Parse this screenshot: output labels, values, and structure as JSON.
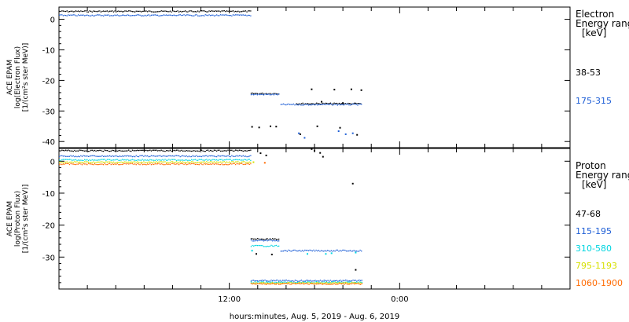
{
  "figure": {
    "xlabel": "hours:minutes, Aug.  5, 2019 - Aug.  6, 2019"
  },
  "chart_data": [
    {
      "type": "scatter",
      "panel": "electron",
      "ylabel_lines": [
        "ACE EPAM",
        "log(Electron Flux)",
        "[1/(cm²s ster MeV)]"
      ],
      "legend_title_lines": [
        "Electron",
        "Energy ranges",
        "[keV]"
      ],
      "legend_placement": "right",
      "xlim_hours": [
        0,
        36
      ],
      "x_tick_labels": [
        {
          "hour": 12,
          "label": "12:00"
        },
        {
          "hour": 24,
          "label": "0:00"
        }
      ],
      "ylim": [
        -42,
        4
      ],
      "y_ticks": [
        0,
        -10,
        -20,
        -30,
        -40
      ],
      "grid": false,
      "series": [
        {
          "name": "38-53",
          "color": "#000000",
          "segments": [
            {
              "x_start": 0,
              "x_end": 13.5,
              "y": 2.6
            },
            {
              "x_start": 13.5,
              "x_end": 15.5,
              "y": -24.3
            },
            {
              "x_start": 16.7,
              "x_end": 21.3,
              "y": -27.6
            }
          ],
          "points": [
            [
              13.6,
              -35.2
            ],
            [
              14.1,
              -35.4
            ],
            [
              14.9,
              -35.0
            ],
            [
              15.3,
              -35.1
            ],
            [
              17.0,
              -37.6
            ],
            [
              17.8,
              -22.9
            ],
            [
              18.2,
              -35.0
            ],
            [
              18.5,
              -27.0
            ],
            [
              19.4,
              -23.0
            ],
            [
              19.8,
              -35.5
            ],
            [
              20.0,
              -27.4
            ],
            [
              20.6,
              -22.9
            ],
            [
              21.0,
              -37.8
            ],
            [
              21.3,
              -23.2
            ]
          ]
        },
        {
          "name": "175-315",
          "color": "#1f5fd6",
          "segments": [
            {
              "x_start": 0,
              "x_end": 13.5,
              "y": 1.3
            },
            {
              "x_start": 13.5,
              "x_end": 15.5,
              "y": -24.6
            },
            {
              "x_start": 15.6,
              "x_end": 21.3,
              "y": -27.9
            }
          ],
          "points": [
            [
              16.9,
              -37.3
            ],
            [
              17.3,
              -38.8
            ],
            [
              19.7,
              -36.6
            ],
            [
              20.2,
              -37.6
            ],
            [
              20.7,
              -37.3
            ]
          ]
        }
      ]
    },
    {
      "type": "scatter",
      "panel": "proton",
      "ylabel_lines": [
        "ACE EPAM",
        "log(Proton Flux)",
        "[1/(cm²s ster MeV)]"
      ],
      "legend_title_lines": [
        "Proton",
        "Energy ranges",
        "[keV]"
      ],
      "legend_placement": "right",
      "xlim_hours": [
        0,
        36
      ],
      "x_tick_labels": [
        {
          "hour": 12,
          "label": "12:00"
        },
        {
          "hour": 24,
          "label": "0:00"
        }
      ],
      "ylim": [
        -40,
        4
      ],
      "y_ticks": [
        0,
        -10,
        -20,
        -30
      ],
      "grid": false,
      "series": [
        {
          "name": "47-68",
          "color": "#000000",
          "segments": [
            {
              "x_start": 0,
              "x_end": 13.5,
              "y": 3.3
            },
            {
              "x_start": 13.5,
              "x_end": 15.5,
              "y": -24.4
            }
          ],
          "points": [
            [
              14.2,
              2.5
            ],
            [
              14.6,
              1.8
            ],
            [
              17.8,
              3.8
            ],
            [
              18.4,
              2.6
            ],
            [
              18.6,
              1.4
            ],
            [
              18.0,
              3.3
            ],
            [
              20.7,
              -7.0
            ],
            [
              20.9,
              -34.0
            ],
            [
              13.9,
              -29.0
            ],
            [
              15.0,
              -29.2
            ]
          ]
        },
        {
          "name": "115-195",
          "color": "#1f5fd6",
          "segments": [
            {
              "x_start": 0,
              "x_end": 13.5,
              "y": 1.6
            },
            {
              "x_start": 13.5,
              "x_end": 15.5,
              "y": -24.8
            },
            {
              "x_start": 15.6,
              "x_end": 21.3,
              "y": -28.0
            },
            {
              "x_start": 13.5,
              "x_end": 21.3,
              "y": -37.4
            }
          ],
          "points": []
        },
        {
          "name": "310-580",
          "color": "#00d5e0",
          "segments": [
            {
              "x_start": 0,
              "x_end": 13.5,
              "y": 0.4
            },
            {
              "x_start": 13.5,
              "x_end": 15.5,
              "y": -26.5
            },
            {
              "x_start": 13.5,
              "x_end": 21.3,
              "y": -37.9
            }
          ],
          "points": [
            [
              13.6,
              -28.0
            ],
            [
              17.5,
              -29.0
            ],
            [
              18.8,
              -29.0
            ],
            [
              19.2,
              -28.8
            ],
            [
              20.9,
              -28.6
            ]
          ]
        },
        {
          "name": "795-1193",
          "color": "#d6e000",
          "segments": [
            {
              "x_start": 0,
              "x_end": 13.5,
              "y": -0.3
            },
            {
              "x_start": 13.5,
              "x_end": 21.3,
              "y": -38.1
            }
          ],
          "points": [
            [
              13.7,
              -0.3
            ]
          ]
        },
        {
          "name": "1060-1900",
          "color": "#ff6a00",
          "segments": [
            {
              "x_start": 0,
              "x_end": 13.5,
              "y": -0.9
            },
            {
              "x_start": 13.5,
              "x_end": 21.3,
              "y": -38.4
            }
          ],
          "points": [
            [
              14.5,
              -0.5
            ]
          ]
        }
      ]
    }
  ]
}
